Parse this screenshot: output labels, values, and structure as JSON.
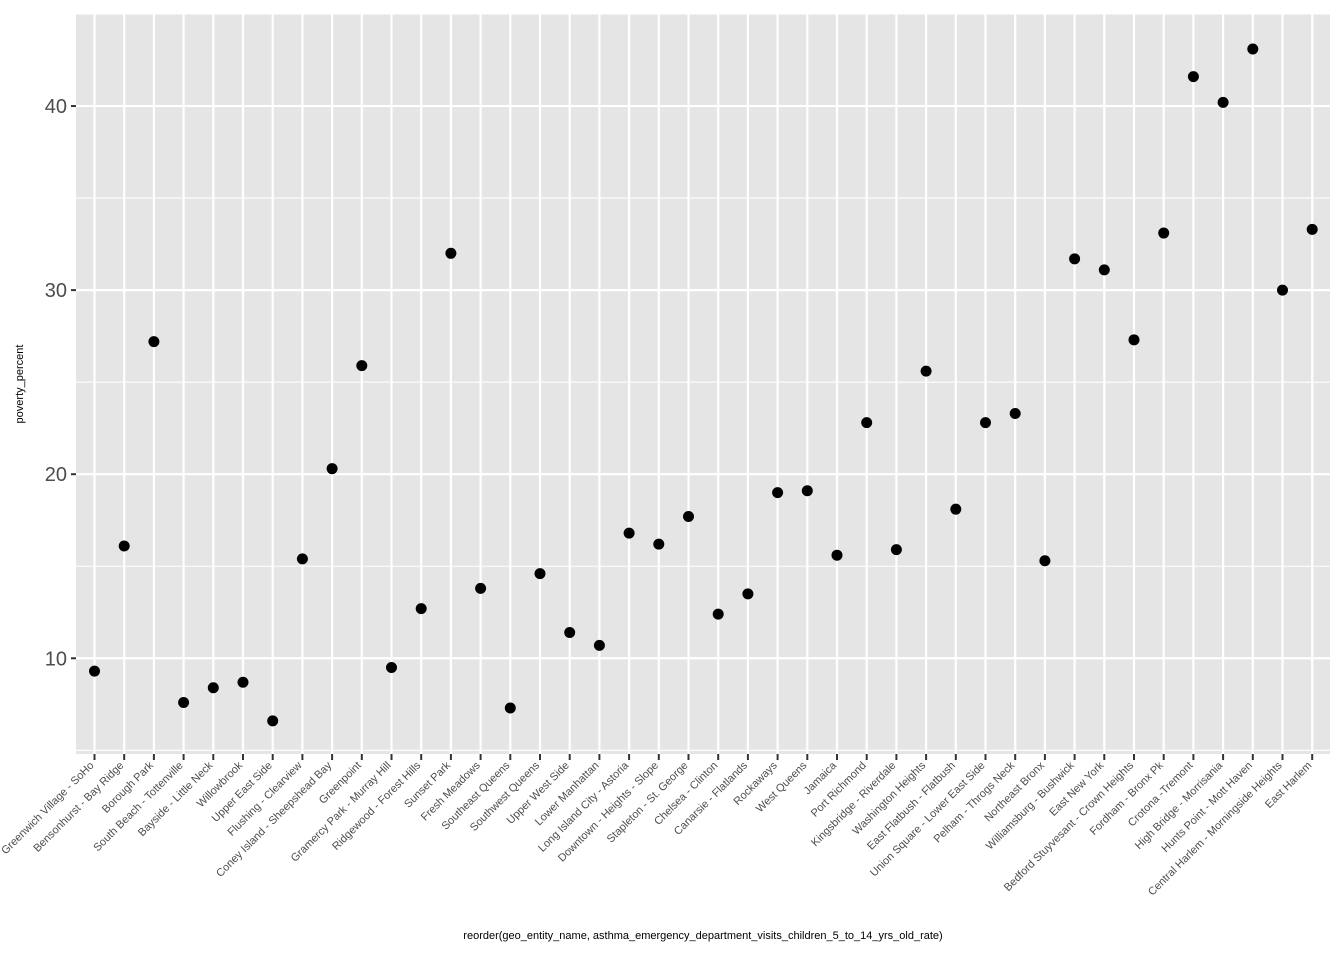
{
  "chart_data": {
    "type": "scatter",
    "xlabel": "reorder(geo_entity_name, asthma_emergency_department_visits_children_5_to_14_yrs_old_rate)",
    "ylabel": "poverty_percent",
    "ylim": [
      4.8,
      45.0
    ],
    "yticks": [
      10,
      20,
      30,
      40
    ],
    "grid": true,
    "colors": {
      "panel": "#e5e5e5",
      "grid": "#ffffff",
      "point": "#000000",
      "tick_text": "#4d4d4d"
    },
    "categories": [
      "Greenwich Village - SoHo",
      "Bensonhurst - Bay Ridge",
      "Borough Park",
      "South Beach - Tottenville",
      "Bayside - Little Neck",
      "Willowbrook",
      "Upper East Side",
      "Flushing - Clearview",
      "Coney Island - Sheepshead Bay",
      "Greenpoint",
      "Gramercy Park - Murray Hill",
      "Ridgewood - Forest Hills",
      "Sunset Park",
      "Fresh Meadows",
      "Southeast Queens",
      "Southwest Queens",
      "Upper West Side",
      "Lower Manhattan",
      "Long Island City - Astoria",
      "Downtown - Heights - Slope",
      "Stapleton - St. George",
      "Chelsea - Clinton",
      "Canarsie - Flatlands",
      "Rockaways",
      "West Queens",
      "Jamaica",
      "Port Richmond",
      "Kingsbridge - Riverdale",
      "Washington Heights",
      "East Flatbush - Flatbush",
      "Union Square - Lower East Side",
      "Pelham - Throgs Neck",
      "Northeast Bronx",
      "Williamsburg - Bushwick",
      "East New York",
      "Bedford Stuyvesant - Crown Heights",
      "Fordham - Bronx Pk",
      "Crotona -Tremont",
      "High Bridge - Morrisania",
      "Hunts Point - Mott Haven",
      "Central Harlem - Morningside Heights",
      "East Harlem"
    ],
    "values": [
      9.3,
      16.1,
      27.2,
      7.6,
      8.4,
      8.7,
      6.6,
      15.4,
      20.3,
      25.9,
      9.5,
      12.7,
      32.0,
      13.8,
      7.3,
      14.6,
      11.4,
      10.7,
      16.8,
      16.2,
      17.7,
      12.4,
      13.5,
      19.0,
      19.1,
      15.6,
      22.8,
      15.9,
      25.6,
      18.1,
      22.8,
      23.3,
      15.3,
      31.7,
      31.1,
      27.3,
      33.1,
      41.6,
      40.2,
      43.1,
      30.0,
      33.3
    ]
  }
}
